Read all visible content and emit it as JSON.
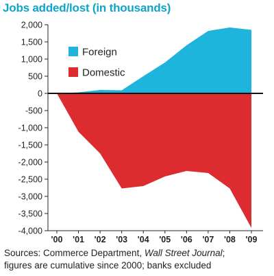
{
  "chart_data": {
    "type": "area",
    "title": "Jobs added/lost (in thousands)",
    "categories": [
      "'00",
      "'01",
      "'02",
      "'03",
      "'04",
      "'05",
      "'06",
      "'07",
      "'08",
      "'09"
    ],
    "series": [
      {
        "name": "Foreign",
        "values": [
          0,
          30,
          100,
          90,
          500,
          900,
          1400,
          1820,
          1920,
          1850
        ]
      },
      {
        "name": "Domestic",
        "values": [
          0,
          -1120,
          -1750,
          -2770,
          -2700,
          -2420,
          -2260,
          -2320,
          -2770,
          -3920
        ]
      }
    ],
    "yticks": [
      "2,000",
      "1,500",
      "1,000",
      "500",
      "0",
      "-500",
      "-1,000",
      "-1,500",
      "-2,000",
      "-2,500",
      "-3,000",
      "-3,500",
      "-4,000"
    ],
    "ylim": [
      -4000,
      2000
    ],
    "grid": false,
    "legend_position": "upper-left inside plot",
    "colors": {
      "Foreign": "#1fb4dc",
      "Domestic": "#dc2c2f"
    }
  },
  "source_note": {
    "prefix": "Sources: Commerce Department, ",
    "italic": "Wall Street Journal",
    "suffix": ";",
    "line2": "figures are cumulative since 2000; banks excluded"
  }
}
